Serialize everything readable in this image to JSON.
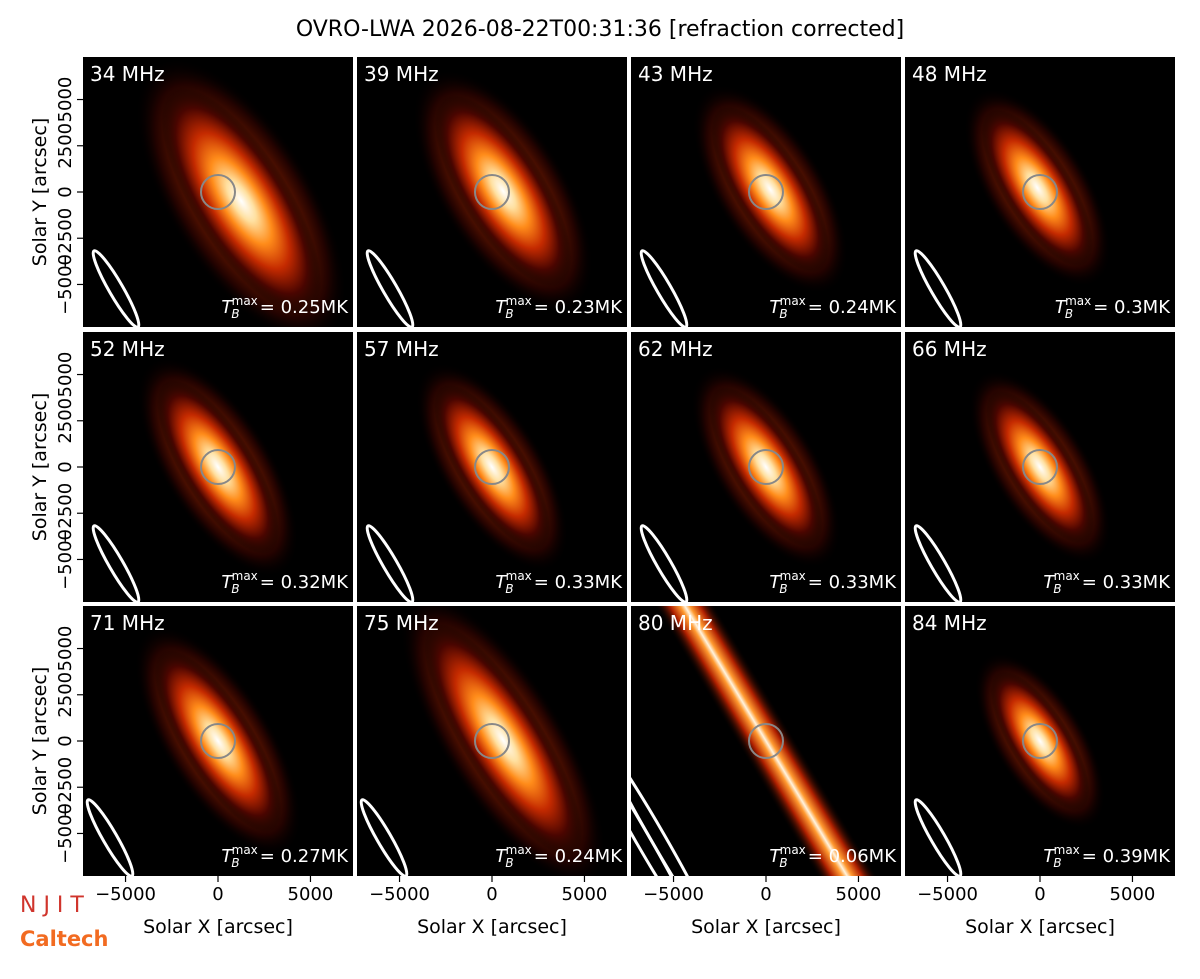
{
  "figure_title": "OVRO-LWA 2026-08-22T00:31:36 [refraction corrected]",
  "tb_symbol": "T",
  "tb_sub": "B",
  "tb_sup": "max",
  "logos": [
    "N J I T",
    "Caltech"
  ],
  "chart_data": [
    {
      "type": "image",
      "title": "34 MHz",
      "annotation": "= 0.25MK",
      "xlim": [
        -7300,
        7300
      ],
      "ylim": [
        -7300,
        7300
      ],
      "ylabel": "Solar Y [arcsec]",
      "yticks": [
        {
          "value": -5000,
          "label": "−5000"
        },
        {
          "value": -2500,
          "label": "−2500"
        },
        0,
        2500,
        5000
      ]
    },
    {
      "type": "image",
      "title": "39 MHz",
      "annotation": "= 0.23MK",
      "xlim": [
        -7300,
        7300
      ],
      "ylim": [
        -7300,
        7300
      ]
    },
    {
      "type": "image",
      "title": "43 MHz",
      "annotation": "= 0.24MK",
      "xlim": [
        -7300,
        7300
      ],
      "ylim": [
        -7300,
        7300
      ]
    },
    {
      "type": "image",
      "title": "48 MHz",
      "annotation": "= 0.3MK",
      "xlim": [
        -7300,
        7300
      ],
      "ylim": [
        -7300,
        7300
      ]
    },
    {
      "type": "image",
      "title": "52 MHz",
      "annotation": "= 0.32MK",
      "xlim": [
        -7300,
        7300
      ],
      "ylim": [
        -7300,
        7300
      ],
      "ylabel": "Solar Y [arcsec]",
      "yticks": [
        {
          "value": -5000,
          "label": "−5000"
        },
        {
          "value": -2500,
          "label": "−2500"
        },
        0,
        2500,
        5000
      ]
    },
    {
      "type": "image",
      "title": "57 MHz",
      "annotation": "= 0.33MK",
      "xlim": [
        -7300,
        7300
      ],
      "ylim": [
        -7300,
        7300
      ]
    },
    {
      "type": "image",
      "title": "62 MHz",
      "annotation": "= 0.33MK",
      "xlim": [
        -7300,
        7300
      ],
      "ylim": [
        -7300,
        7300
      ]
    },
    {
      "type": "image",
      "title": "66 MHz",
      "annotation": "= 0.33MK",
      "xlim": [
        -7300,
        7300
      ],
      "ylim": [
        -7300,
        7300
      ]
    },
    {
      "type": "image",
      "title": "71 MHz",
      "annotation": "= 0.27MK",
      "xlim": [
        -7300,
        7300
      ],
      "ylim": [
        -7300,
        7300
      ],
      "ylabel": "Solar Y [arcsec]",
      "xlabel": "Solar X [arcsec]",
      "yticks": [
        {
          "value": -5000,
          "label": "−5000"
        },
        {
          "value": -2500,
          "label": "−2500"
        },
        0,
        2500,
        5000
      ],
      "xticks": [
        {
          "value": -5000,
          "label": "−5000"
        },
        0,
        5000
      ]
    },
    {
      "type": "image",
      "title": "75 MHz",
      "annotation": "= 0.24MK",
      "xlim": [
        -7300,
        7300
      ],
      "ylim": [
        -7300,
        7300
      ],
      "xlabel": "Solar X [arcsec]",
      "xticks": [
        {
          "value": -5000,
          "label": "−5000"
        },
        0,
        5000
      ]
    },
    {
      "type": "image",
      "title": "80 MHz",
      "annotation": "= 0.06MK",
      "xlim": [
        -7300,
        7300
      ],
      "ylim": [
        -7300,
        7300
      ],
      "xlabel": "Solar X [arcsec]",
      "xticks": [
        {
          "value": -5000,
          "label": "−5000"
        },
        0,
        5000
      ]
    },
    {
      "type": "image",
      "title": "84 MHz",
      "annotation": "= 0.39MK",
      "xlim": [
        -7300,
        7300
      ],
      "ylim": [
        -7300,
        7300
      ],
      "xlabel": "Solar X [arcsec]",
      "xticks": [
        {
          "value": -5000,
          "label": "−5000"
        },
        0,
        5000
      ]
    }
  ]
}
